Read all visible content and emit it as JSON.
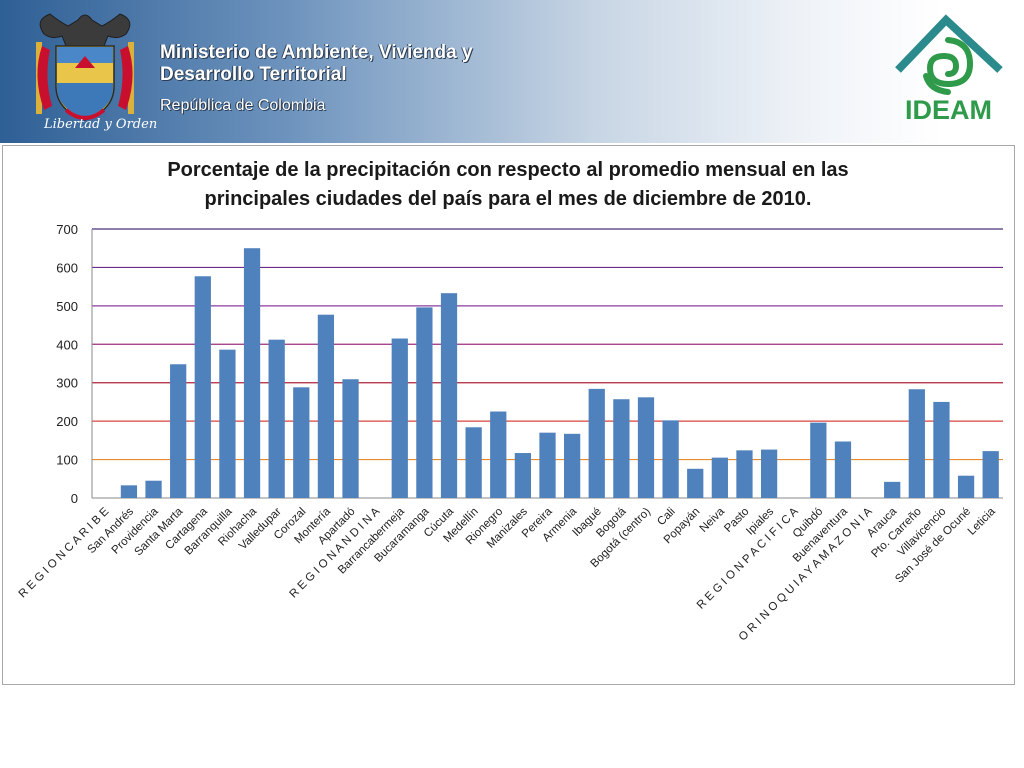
{
  "header": {
    "ministry": "Ministerio de Ambiente, Vivienda y Desarrollo Territorial",
    "republic": "República de Colombia",
    "motto": "Libertad y Orden",
    "ideam_logo": "IDEAM"
  },
  "colors": {
    "bar": "#4f81bd",
    "header_dark": "#2e5f95",
    "ideam_green": "#2e9a4a",
    "ideam_teal": "#2a8a8c"
  },
  "chart_data": {
    "type": "bar",
    "title": "Porcentaje de la precipitación con respecto al promedio mensual en las principales ciudades del país para el mes de diciembre de 2010.",
    "xlabel": "",
    "ylabel": "",
    "ylim": [
      0,
      700
    ],
    "yticks": [
      0,
      100,
      200,
      300,
      400,
      500,
      600,
      700
    ],
    "grid": true,
    "gridline_colors": [
      "#e98a2f",
      "#d9453c",
      "#b0223a",
      "#9c2f7f",
      "#8a3c9c",
      "#6a2e8a",
      "#47337a"
    ],
    "categories": [
      "R E G I O N   C A R I B E",
      "San Andrés",
      "Providencia",
      "Santa Marta",
      "Cartagena",
      "Barranquilla",
      "Riohacha",
      "Valledupar",
      "Corozal",
      "Montería",
      "Apartadó",
      "R E G I O N   A N D I N A",
      "Barrancabermeja",
      "Bucaramanga",
      "Cúcuta",
      "Medellín",
      "Rionegro",
      "Manizales",
      "Pereira",
      "Armenia",
      "Ibagué",
      "Bogotá",
      "Bogotá (centro)",
      "Cali",
      "Popayán",
      "Neiva",
      "Pasto",
      "Ipiales",
      "R E G I O N   P A C I F I C A",
      "Quibdó",
      "Buenaventura",
      "O R I N O Q U I A   Y   A M A Z O N I A",
      "Arauca",
      "Pto. Carreño",
      "Villavicencio",
      "San José de Ocuné",
      "Leticia"
    ],
    "values": [
      0,
      33,
      45,
      348,
      577,
      386,
      650,
      412,
      288,
      477,
      309,
      0,
      415,
      496,
      533,
      184,
      225,
      117,
      170,
      167,
      284,
      257,
      262,
      202,
      76,
      105,
      124,
      126,
      0,
      196,
      147,
      0,
      42,
      283,
      250,
      58,
      122
    ]
  }
}
